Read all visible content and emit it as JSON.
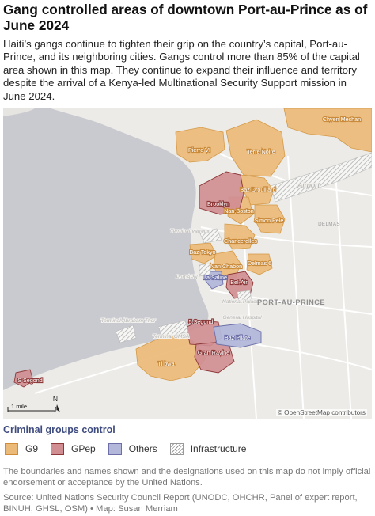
{
  "title": "Gang controlled areas of downtown Port-au-Prince as of June 2024",
  "subtitle": "Haiti’s gangs continue to tighten their grip on the country’s capital, Port-au-Prince, and its neighboring cities. Gangs control more than 85% of the capital area shown in this map. They continue to expand their influence and territory despite the arrival of a Kenya-led Multinational Security Support mission in June 2024.",
  "colors": {
    "G9": "#ecba78",
    "GPep": "#d08e92",
    "Others": "#b3b8da",
    "infrastructure_hatch": "#a8a8a8",
    "water": "#c9c9d0",
    "land": "#ecebe7"
  },
  "map": {
    "attribution": "© OpenStreetMap contributors",
    "scale_label": "1 mile",
    "north_label": "N",
    "city_label": "PORT-AU-PRINCE",
    "district_label": "DELMAS",
    "airport_label": "Airport",
    "g9_areas": [
      "Chyen Mechan",
      "Pierre VI",
      "Terre Noire",
      "Baz Drouillard",
      "Nan Boston",
      "Simon Pele",
      "Chancerelles",
      "Baz Tokyo",
      "Nan Chabon",
      "Delmas 6",
      "Ti bwa"
    ],
    "gpep_areas": [
      "Brooklyn",
      "Bel-Air",
      "5 Segond",
      "Gran Ravine",
      "S Segond"
    ],
    "other_areas": [
      "La Saline",
      "Baz Pilate"
    ],
    "infrastructure_labels": [
      "Terminal Varreux",
      "Port APN",
      "National Palace",
      "General Hospital",
      "Terminal Abraham Thor",
      "Terminal GMSA"
    ]
  },
  "legend": {
    "title": "Criminal groups control",
    "items": [
      {
        "key": "G9",
        "label": "G9"
      },
      {
        "key": "GPep",
        "label": "GPep"
      },
      {
        "key": "Others",
        "label": "Others"
      },
      {
        "key": "Infrastructure",
        "label": "Infrastructure"
      }
    ]
  },
  "disclaimer": "The boundaries and names shown and the designations used on this map do not imply official endorsement or acceptance by the United Nations.",
  "source": "Source: United Nations Security Council Report (UNODC, OHCHR, Panel of expert report, BINUH, GHSL, OSM) • Map: Susan Merriam"
}
